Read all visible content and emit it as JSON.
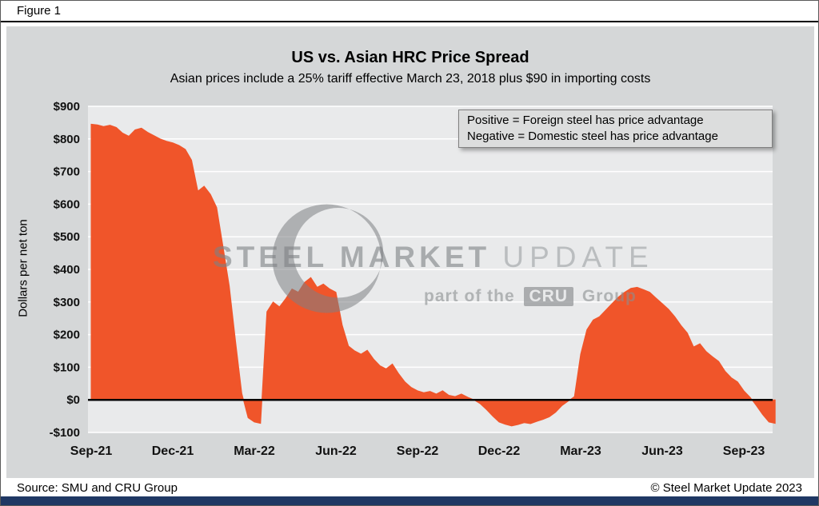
{
  "figure": {
    "label": "Figure 1"
  },
  "chart": {
    "title": "US vs. Asian HRC Price Spread",
    "subtitle": "Asian prices include a 25% tariff effective March 23, 2018 plus $90 in importing costs",
    "note_line1": "Positive = Foreign steel has price advantage",
    "note_line2": "Negative = Domestic steel has price advantage",
    "ylabel": "Dollars per net ton"
  },
  "watermark": {
    "line1_bold": "STEEL MARKET",
    "line1_light": "UPDATE",
    "line2_prefix": "part of the",
    "line2_logo": "CRU",
    "line2_suffix": "Group"
  },
  "footer": {
    "source": "Source: SMU and CRU Group",
    "copyright": "© Steel Market Update 2023"
  },
  "colors": {
    "area_fill": "#f0552a",
    "chart_bg": "#d5d7d8",
    "plot_bg": "#e9eaeb",
    "gridline": "#ffffff",
    "zero_line": "#000000",
    "accent_bar": "#1f3864"
  },
  "chart_data": {
    "type": "area",
    "title": "US vs. Asian HRC Price Spread",
    "subtitle": "Asian prices include a 25% tariff effective March 23, 2018 plus $90 in importing costs",
    "ylabel": "Dollars per net ton",
    "xlabel": "",
    "ylim": [
      -100,
      900
    ],
    "y_tick_step": 100,
    "grid": true,
    "zero_line": true,
    "legend_position": "none",
    "annotations": [
      "Positive = Foreign steel has price advantage",
      "Negative = Domestic steel has price advantage"
    ],
    "x_unit": "weeks starting Sep-2021",
    "x_tick_labels": [
      "Sep-21",
      "Dec-21",
      "Mar-22",
      "Jun-22",
      "Sep-22",
      "Dec-22",
      "Mar-23",
      "Jun-23",
      "Sep-23"
    ],
    "points_per_tick": 13,
    "series": [
      {
        "name": "US minus Asian HRC price spread ($/net ton)",
        "values": [
          845,
          843,
          838,
          842,
          835,
          818,
          808,
          828,
          833,
          820,
          810,
          800,
          793,
          788,
          780,
          768,
          735,
          640,
          655,
          630,
          590,
          470,
          350,
          180,
          20,
          -55,
          -68,
          -72,
          270,
          300,
          285,
          310,
          340,
          330,
          360,
          375,
          345,
          355,
          340,
          330,
          230,
          165,
          150,
          140,
          152,
          125,
          105,
          95,
          110,
          80,
          55,
          38,
          28,
          22,
          26,
          18,
          28,
          14,
          10,
          18,
          8,
          0,
          -12,
          -30,
          -50,
          -68,
          -75,
          -80,
          -76,
          -70,
          -73,
          -66,
          -60,
          -52,
          -38,
          -18,
          -4,
          10,
          140,
          215,
          245,
          255,
          275,
          295,
          315,
          330,
          342,
          345,
          338,
          330,
          312,
          295,
          278,
          255,
          228,
          205,
          162,
          172,
          148,
          132,
          118,
          88,
          68,
          55,
          28,
          8,
          -18,
          -45,
          -68,
          -72
        ]
      }
    ]
  }
}
